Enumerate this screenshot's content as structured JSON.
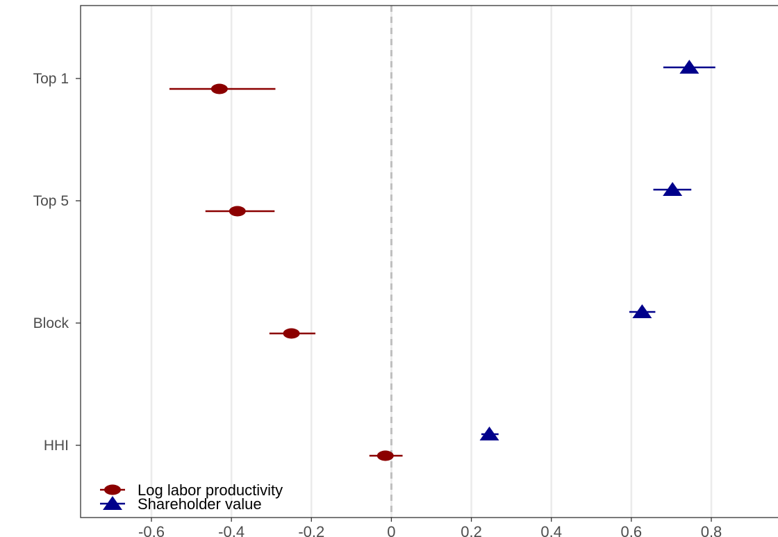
{
  "chart_data": {
    "type": "scatter",
    "title": "",
    "xlabel": "",
    "ylabel": "",
    "xlim": [
      -0.78,
      0.97
    ],
    "x_ticks": [
      -0.6,
      -0.4,
      -0.2,
      0,
      0.2,
      0.4,
      0.6,
      0.8
    ],
    "x_tick_labels": [
      "-0.6",
      "-0.4",
      "-0.2",
      "0",
      "0.2",
      "0.4",
      "0.6",
      "0.8"
    ],
    "categories": [
      "Top 1",
      "Top 5",
      "Block",
      "HHI"
    ],
    "reference_line": {
      "x": 0,
      "style": "dashed",
      "color": "#bfbfbf"
    },
    "grid": {
      "vertical_major": true,
      "horizontal": false
    },
    "legend": {
      "position": "bottom-left"
    },
    "series": [
      {
        "name": "Log labor productivity",
        "marker": "circle",
        "color": "#8b0000",
        "points": [
          {
            "category": "Top 1",
            "estimate": -0.43,
            "ci": [
              -0.555,
              -0.29
            ]
          },
          {
            "category": "Top 5",
            "estimate": -0.385,
            "ci": [
              -0.465,
              -0.292
            ]
          },
          {
            "category": "Block",
            "estimate": -0.25,
            "ci": [
              -0.305,
              -0.19
            ]
          },
          {
            "category": "HHI",
            "estimate": -0.015,
            "ci": [
              -0.055,
              0.028
            ]
          }
        ]
      },
      {
        "name": "Shareholder value",
        "marker": "triangle",
        "color": "#00008b",
        "points": [
          {
            "category": "Top 1",
            "estimate": 0.745,
            "ci": [
              0.68,
              0.81
            ]
          },
          {
            "category": "Top 5",
            "estimate": 0.703,
            "ci": [
              0.655,
              0.75
            ]
          },
          {
            "category": "Block",
            "estimate": 0.627,
            "ci": [
              0.595,
              0.66
            ]
          },
          {
            "category": "HHI",
            "estimate": 0.245,
            "ci": [
              0.225,
              0.268
            ]
          }
        ]
      }
    ]
  }
}
